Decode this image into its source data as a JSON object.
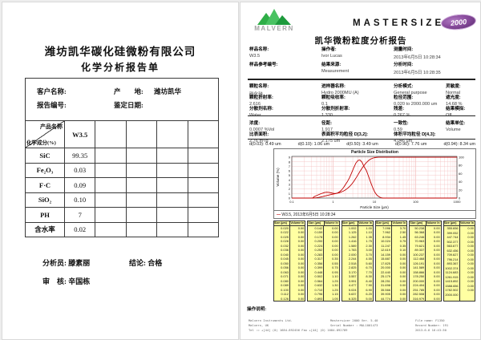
{
  "left_report": {
    "company": "潍坊凯华碳化硅微粉有限公司",
    "title": "化学分析报告单",
    "info": {
      "customer_label": "客户名称:",
      "customer_value": "",
      "origin_label": "产　　地:",
      "origin_value": "潍坊凯华",
      "report_no_label": "报告编号:",
      "report_no_value": "",
      "date_label": "鉴定日期:",
      "date_value": ""
    },
    "matrix": {
      "diag_top": "产品名称",
      "diag_bottom": "化学成分(%)",
      "product": "W3.5",
      "empty_columns": 4,
      "rows": [
        {
          "label": "SiC",
          "value": "99.35"
        },
        {
          "label": "Fe₂O₃",
          "value": "0.03"
        },
        {
          "label": "F·C",
          "value": "0.09"
        },
        {
          "label": "SiO₂",
          "value": "0.10"
        },
        {
          "label": "PH",
          "value": "7"
        },
        {
          "label": "含水率",
          "value": "0.02"
        }
      ]
    },
    "signatures": {
      "analyst_label": "分析员:",
      "analyst": "滕素丽",
      "conclusion_label": "结论:",
      "conclusion": "合格",
      "reviewer_label": "审　核:",
      "reviewer": "辛国栋"
    }
  },
  "right_report": {
    "brand": {
      "logo_text": "MALVERN",
      "wordmark": "MASTERSIZER",
      "badge": "2000",
      "title": "凯华微粉粒度分析报告"
    },
    "header_fields": [
      {
        "label": "样品名称:",
        "value": "W3.5"
      },
      {
        "label": "操作者:",
        "value": "Ivor Lucas"
      },
      {
        "label": "测量时间:",
        "value": "2013年6月5日 10:28:34"
      },
      {
        "label": "样品参考编号:",
        "value": ""
      },
      {
        "label": "结果来源:",
        "value": "Measurement"
      },
      {
        "label": "分析时间:",
        "value": "2013年6月5日 10:28:35"
      }
    ],
    "param_fields": [
      {
        "label": "颗粒名称:",
        "value": "碳化硅"
      },
      {
        "label": "进样器名称:",
        "value": "Hydro 2000MU (A)"
      },
      {
        "label": "分析模式:",
        "value": "General purpose"
      },
      {
        "label": "灵敏度:",
        "value": "Normal"
      },
      {
        "label": "颗粒折射率:",
        "value": "2.616"
      },
      {
        "label": "颗粒吸收率:",
        "value": "0.1"
      },
      {
        "label": "粒径范围:",
        "value": "0.020 to 2000.000 um"
      },
      {
        "label": "遮光度:",
        "value": "14.68 %"
      },
      {
        "label": "分散剂名称:",
        "value": "Water"
      },
      {
        "label": "分散剂折射率:",
        "value": "1.330"
      },
      {
        "label": "残差:",
        "value": "0.267 %"
      },
      {
        "label": "结果模拟:",
        "value": "Off"
      }
    ],
    "result_fields": [
      {
        "label": "浓度:",
        "value": "0.0007 %Vol"
      },
      {
        "label": "径距:",
        "value": "1.917"
      },
      {
        "label": "一致性:",
        "value": "0.59"
      },
      {
        "label": "结果单位:",
        "value": "Volume"
      },
      {
        "label": "比表面积:",
        "value": "2.76 m²/g"
      },
      {
        "label": "表面积平均粒径 D[3,2]:",
        "value": "2.175 um"
      },
      {
        "label": "体积平均粒径 D[4,3]:",
        "value": "4.046 um"
      }
    ],
    "d_values": [
      "d(0.03): 0.49 um",
      "d(0.10): 1.06 um",
      "d(0.50): 3.49 um",
      "d(0.90): 7.76 um",
      "d(0.94): 8.34 um"
    ],
    "notes_label": "操作说明:",
    "footer": {
      "left_lines": [
        "Malvern Instruments Ltd.",
        "Malvern, UK",
        "Tel := +[44] (0) 1684-892456 Fax +[44] (0) 1684-892789"
      ],
      "center_lines": [
        "Mastersizer 2000 Ver. 5.40",
        "Serial Number : MAL1001473"
      ],
      "right_lines": [
        "File name: F1350",
        "Record Number: 191",
        "2013-6-6 16:43:30"
      ]
    }
  },
  "chart_data": {
    "type": "line",
    "title": "Particle Size Distribution",
    "xlabel": "Particle Size (µm)",
    "ylabel": "Volume (%)",
    "x_scale": "log",
    "xlim": [
      0.1,
      1000
    ],
    "left_ylim": [
      0,
      9.2
    ],
    "left_ticks": [
      0,
      1,
      2,
      3,
      4,
      5,
      6,
      7,
      8,
      9
    ],
    "right_ticks": [
      0,
      20,
      40,
      60,
      80,
      100
    ],
    "grid": true,
    "grid_color": "#f4bcbc",
    "line_color": "#c00000",
    "legend": "W3.5, 2013年6月5日 10:28:34",
    "legend_position": "bottom",
    "series": [
      {
        "name": "volume frequency (% per size class)",
        "source": "volumes"
      },
      {
        "name": "cumulative volume under (%)",
        "source": "cumulative of volumes, plateau 100"
      }
    ],
    "size_header": "Size (µm)",
    "volume_header": "Volume In %",
    "table_columns": 6,
    "rows_per_column": 17,
    "sizes": [
      0.02,
      0.022,
      0.025,
      0.028,
      0.032,
      0.036,
      0.04,
      0.045,
      0.05,
      0.056,
      0.063,
      0.071,
      0.08,
      0.089,
      0.1,
      0.112,
      0.126,
      0.142,
      0.159,
      0.178,
      0.2,
      0.224,
      0.252,
      0.283,
      0.317,
      0.356,
      0.399,
      0.448,
      0.502,
      0.564,
      0.632,
      0.71,
      0.796,
      0.893,
      1.002,
      1.125,
      1.262,
      1.416,
      1.589,
      1.783,
      2.0,
      2.244,
      2.518,
      2.825,
      3.17,
      3.557,
      3.991,
      4.477,
      5.024,
      5.637,
      6.325,
      7.096,
      7.962,
      8.934,
      10.024,
      11.247,
      12.619,
      14.159,
      15.887,
      17.825,
      20.0,
      22.44,
      25.179,
      28.251,
      31.698,
      35.566,
      39.905,
      44.774,
      50.238,
      56.368,
      63.246,
      70.963,
      79.621,
      89.337,
      100.237,
      112.468,
      126.191,
      141.589,
      158.866,
      178.25,
      200.0,
      224.404,
      251.785,
      282.508,
      316.979,
      355.656,
      399.052,
      447.744,
      502.377,
      563.677,
      632.456,
      709.627,
      796.214,
      893.367,
      1002.374,
      1124.683,
      1261.915,
      1415.892,
      1588.656,
      1782.502,
      2000.0
    ],
    "volumes": [
      0,
      0,
      0,
      0,
      0,
      0,
      0,
      0,
      0,
      0,
      0,
      0,
      0,
      0,
      0,
      0,
      0,
      0,
      0,
      0,
      0,
      0,
      0,
      0,
      0.35,
      0.55,
      0.75,
      0.95,
      1.1,
      1.25,
      1.3,
      1.25,
      1.15,
      1.05,
      1.0,
      1.1,
      1.35,
      1.75,
      2.3,
      3.0,
      3.7,
      4.55,
      5.6,
      6.7,
      7.7,
      8.3,
      8.4,
      7.9,
      6.9,
      6.2,
      5.0,
      3.7,
      2.5,
      1.45,
      0.75,
      0.35,
      0.1,
      0,
      0,
      0,
      0,
      0,
      0,
      0,
      0,
      0,
      0,
      0,
      0,
      0,
      0,
      0,
      0,
      0,
      0,
      0,
      0,
      0,
      0,
      0,
      0,
      0,
      0,
      0,
      0,
      0,
      0,
      0,
      0,
      0,
      0,
      0,
      0,
      0,
      0,
      0,
      0,
      0,
      0,
      0
    ]
  }
}
